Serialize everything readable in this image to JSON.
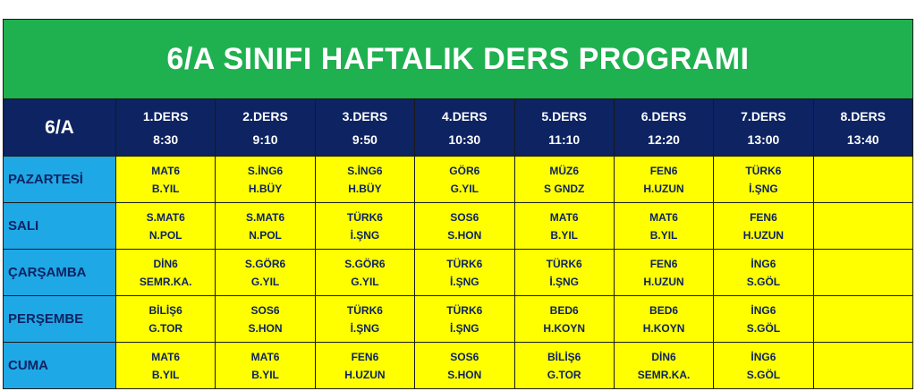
{
  "title": "6/A SINIFI HAFTALIK DERS PROGRAMI",
  "corner": "6/A",
  "periods": [
    {
      "name": "1.DERS",
      "time": "8:30"
    },
    {
      "name": "2.DERS",
      "time": "9:10"
    },
    {
      "name": "3.DERS",
      "time": "9:50"
    },
    {
      "name": "4.DERS",
      "time": "10:30"
    },
    {
      "name": "5.DERS",
      "time": "11:10"
    },
    {
      "name": "6.DERS",
      "time": "12:20"
    },
    {
      "name": "7.DERS",
      "time": "13:00"
    },
    {
      "name": "8.DERS",
      "time": "13:40"
    }
  ],
  "days": [
    {
      "name": "PAZARTESİ",
      "lessons": [
        {
          "course": "MAT6",
          "teacher": "B.YIL"
        },
        {
          "course": "S.İNG6",
          "teacher": "H.BÜY"
        },
        {
          "course": "S.İNG6",
          "teacher": "H.BÜY"
        },
        {
          "course": "GÖR6",
          "teacher": "G.YIL"
        },
        {
          "course": "MÜZ6",
          "teacher": "S GNDZ"
        },
        {
          "course": "FEN6",
          "teacher": "H.UZUN"
        },
        {
          "course": "TÜRK6",
          "teacher": "İ.ŞNG"
        },
        {
          "course": "",
          "teacher": ""
        }
      ]
    },
    {
      "name": "SALI",
      "lessons": [
        {
          "course": "S.MAT6",
          "teacher": "N.POL"
        },
        {
          "course": "S.MAT6",
          "teacher": "N.POL"
        },
        {
          "course": "TÜRK6",
          "teacher": "İ.ŞNG"
        },
        {
          "course": "SOS6",
          "teacher": "S.HON"
        },
        {
          "course": "MAT6",
          "teacher": "B.YIL"
        },
        {
          "course": "MAT6",
          "teacher": "B.YIL"
        },
        {
          "course": "FEN6",
          "teacher": "H.UZUN"
        },
        {
          "course": "",
          "teacher": ""
        }
      ]
    },
    {
      "name": "ÇARŞAMBA",
      "lessons": [
        {
          "course": "DİN6",
          "teacher": "SEMR.KA."
        },
        {
          "course": "S.GÖR6",
          "teacher": "G.YIL"
        },
        {
          "course": "S.GÖR6",
          "teacher": "G.YIL"
        },
        {
          "course": "TÜRK6",
          "teacher": "İ.ŞNG"
        },
        {
          "course": "TÜRK6",
          "teacher": "İ.ŞNG"
        },
        {
          "course": "FEN6",
          "teacher": "H.UZUN"
        },
        {
          "course": "İNG6",
          "teacher": "S.GÖL"
        },
        {
          "course": "",
          "teacher": ""
        }
      ]
    },
    {
      "name": "PERŞEMBE",
      "lessons": [
        {
          "course": "BİLİŞ6",
          "teacher": "G.TOR"
        },
        {
          "course": "SOS6",
          "teacher": "S.HON"
        },
        {
          "course": "TÜRK6",
          "teacher": "İ.ŞNG"
        },
        {
          "course": "TÜRK6",
          "teacher": "İ.ŞNG"
        },
        {
          "course": "BED6",
          "teacher": "H.KOYN"
        },
        {
          "course": "BED6",
          "teacher": "H.KOYN"
        },
        {
          "course": "İNG6",
          "teacher": "S.GÖL"
        },
        {
          "course": "",
          "teacher": ""
        }
      ]
    },
    {
      "name": "CUMA",
      "lessons": [
        {
          "course": "MAT6",
          "teacher": "B.YIL"
        },
        {
          "course": "MAT6",
          "teacher": "B.YIL"
        },
        {
          "course": "FEN6",
          "teacher": "H.UZUN"
        },
        {
          "course": "SOS6",
          "teacher": "S.HON"
        },
        {
          "course": "BİLİŞ6",
          "teacher": "G.TOR"
        },
        {
          "course": "DİN6",
          "teacher": "SEMR.KA."
        },
        {
          "course": "İNG6",
          "teacher": "S.GÖL"
        },
        {
          "course": "",
          "teacher": ""
        }
      ]
    }
  ]
}
